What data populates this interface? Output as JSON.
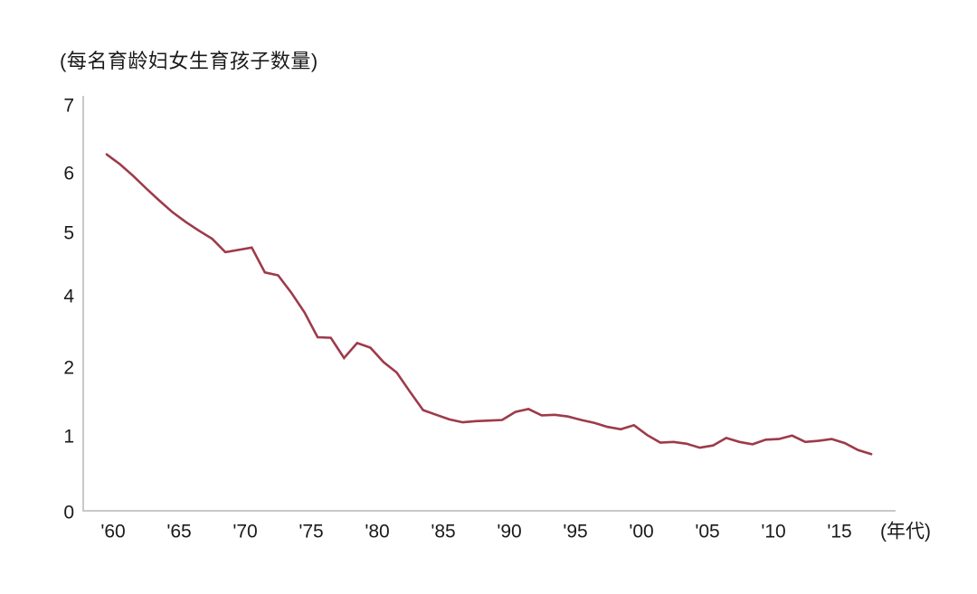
{
  "page": {
    "background_color": "#ffffff"
  },
  "chart_data": {
    "type": "line",
    "title": "(每名育龄妇女生育孩子数量)",
    "xlabel": "(年代)",
    "ylabel": "(每名育龄妇女生育孩子数量)",
    "x_tick_labels": [
      "'60",
      "'65",
      "'70",
      "'75",
      "'80",
      "'85",
      "'90",
      "'95",
      "'00",
      "'05",
      "'10",
      "'15"
    ],
    "y_tick_labels": [
      "0",
      "1",
      "2",
      "4",
      "5",
      "6",
      "7"
    ],
    "ylim": [
      0,
      7
    ],
    "grid": false,
    "legend": "none",
    "line_color": "#9e3a4a",
    "axis_color": "#c9c9c9",
    "text_color": "#1a1a1a",
    "years": [
      1960,
      1961,
      1962,
      1963,
      1964,
      1965,
      1966,
      1967,
      1968,
      1969,
      1970,
      1971,
      1972,
      1973,
      1974,
      1975,
      1976,
      1977,
      1978,
      1979,
      1980,
      1981,
      1982,
      1983,
      1984,
      1985,
      1986,
      1987,
      1988,
      1989,
      1990,
      1991,
      1992,
      1993,
      1994,
      1995,
      1996,
      1997,
      1998,
      1999,
      2000,
      2001,
      2002,
      2003,
      2004,
      2005,
      2006,
      2007,
      2008,
      2009,
      2010,
      2011,
      2012,
      2013,
      2014,
      2015,
      2016,
      2017,
      2018
    ],
    "values": [
      6.16,
      5.99,
      5.79,
      5.57,
      5.36,
      5.16,
      4.99,
      4.84,
      4.7,
      4.47,
      4.51,
      4.55,
      4.12,
      4.07,
      3.77,
      3.43,
      3.0,
      2.99,
      2.64,
      2.9,
      2.82,
      2.57,
      2.39,
      2.06,
      1.74,
      1.66,
      1.58,
      1.53,
      1.55,
      1.56,
      1.57,
      1.71,
      1.76,
      1.65,
      1.66,
      1.63,
      1.57,
      1.52,
      1.45,
      1.41,
      1.48,
      1.31,
      1.18,
      1.19,
      1.16,
      1.09,
      1.13,
      1.26,
      1.19,
      1.15,
      1.23,
      1.24,
      1.3,
      1.19,
      1.21,
      1.24,
      1.17,
      1.05,
      0.98
    ]
  }
}
